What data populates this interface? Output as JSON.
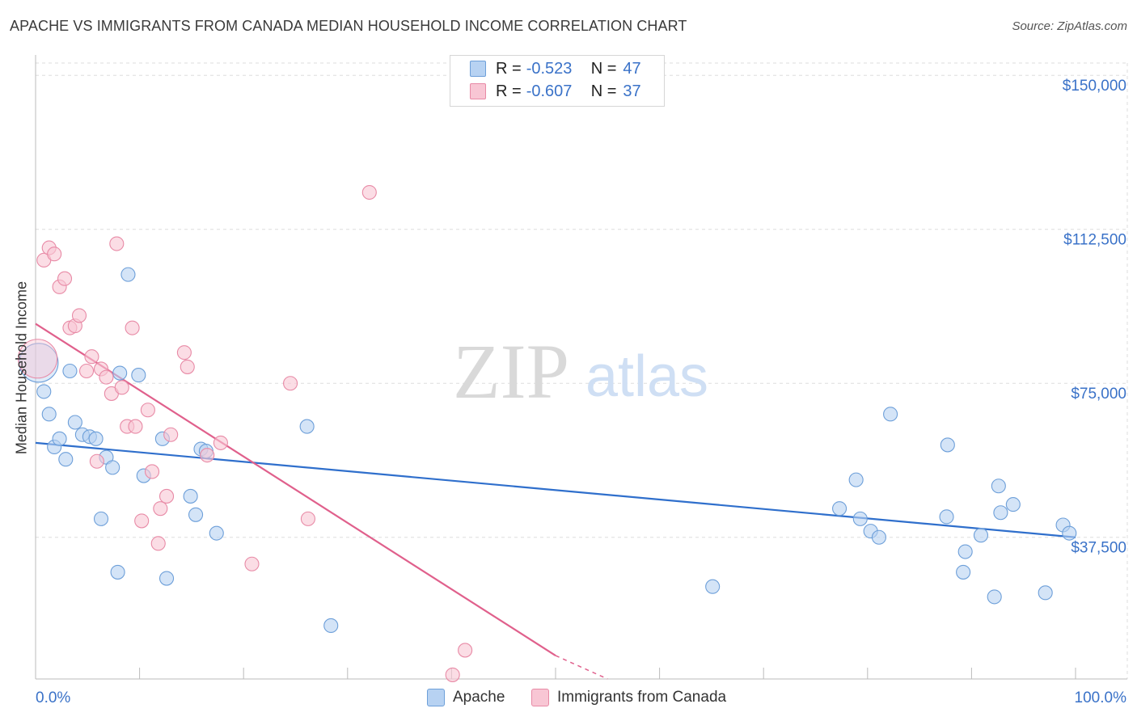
{
  "title": "APACHE VS IMMIGRANTS FROM CANADA MEDIAN HOUSEHOLD INCOME CORRELATION CHART",
  "source": "Source: ZipAtlas.com",
  "watermark": {
    "zip": "ZIP",
    "atlas": "atlas"
  },
  "legend": {
    "rows": [
      {
        "series": "Apache",
        "r_label": "R =",
        "r_value": "-0.523",
        "n_label": "N =",
        "n_value": "47",
        "color": "#a8c8f0"
      },
      {
        "series": "Immigrants from Canada",
        "r_label": "R =",
        "r_value": "-0.607",
        "n_label": "N =",
        "n_value": "37",
        "color": "#f5b8ca"
      }
    ]
  },
  "colors": {
    "apache_fill": "#b7d2f2",
    "apache_stroke": "#6d9fd9",
    "apache_line": "#2f6fcc",
    "canada_fill": "#f8c6d4",
    "canada_stroke": "#e88aa6",
    "canada_line": "#e0608c",
    "axis_value": "#3a72c8",
    "grid": "#dddddd"
  },
  "chart_data": {
    "type": "scatter",
    "title": "APACHE VS IMMIGRANTS FROM CANADA MEDIAN HOUSEHOLD INCOME CORRELATION CHART",
    "xlabel": "",
    "ylabel": "Median Household Income",
    "xlim": [
      0,
      100
    ],
    "ylim": [
      3000,
      153000
    ],
    "x_tick_labels": [
      "0.0%",
      "100.0%"
    ],
    "y_ticks": [
      37500,
      75000,
      112500,
      150000
    ],
    "y_tick_labels": [
      "$37,500",
      "$75,000",
      "$112,500",
      "$150,000"
    ],
    "grid": true,
    "series": [
      {
        "name": "Apache",
        "points": [
          {
            "x": 0.3,
            "y": 80000,
            "big": true
          },
          {
            "x": 0.8,
            "y": 73000
          },
          {
            "x": 1.3,
            "y": 67500
          },
          {
            "x": 1.8,
            "y": 59500
          },
          {
            "x": 2.3,
            "y": 61500
          },
          {
            "x": 2.9,
            "y": 56500
          },
          {
            "x": 3.3,
            "y": 78000
          },
          {
            "x": 3.8,
            "y": 65500
          },
          {
            "x": 4.5,
            "y": 62500
          },
          {
            "x": 5.2,
            "y": 62000
          },
          {
            "x": 5.8,
            "y": 61500
          },
          {
            "x": 6.8,
            "y": 57000
          },
          {
            "x": 7.4,
            "y": 54500
          },
          {
            "x": 8.1,
            "y": 77500
          },
          {
            "x": 8.9,
            "y": 101500
          },
          {
            "x": 9.9,
            "y": 77000
          },
          {
            "x": 10.4,
            "y": 52500
          },
          {
            "x": 6.3,
            "y": 42000
          },
          {
            "x": 7.9,
            "y": 29000
          },
          {
            "x": 12.6,
            "y": 27500
          },
          {
            "x": 12.2,
            "y": 61500
          },
          {
            "x": 15.9,
            "y": 59000
          },
          {
            "x": 16.4,
            "y": 58500
          },
          {
            "x": 14.9,
            "y": 47500
          },
          {
            "x": 15.4,
            "y": 43000
          },
          {
            "x": 17.4,
            "y": 38500
          },
          {
            "x": 26.1,
            "y": 64500
          },
          {
            "x": 28.4,
            "y": 16000
          },
          {
            "x": 65.1,
            "y": 25500
          },
          {
            "x": 78.9,
            "y": 51500
          },
          {
            "x": 77.3,
            "y": 44500
          },
          {
            "x": 79.3,
            "y": 42000
          },
          {
            "x": 80.3,
            "y": 39000
          },
          {
            "x": 81.1,
            "y": 37500
          },
          {
            "x": 82.2,
            "y": 67500
          },
          {
            "x": 87.7,
            "y": 60000
          },
          {
            "x": 87.6,
            "y": 42500
          },
          {
            "x": 89.4,
            "y": 34000
          },
          {
            "x": 89.2,
            "y": 29000
          },
          {
            "x": 90.9,
            "y": 38000
          },
          {
            "x": 92.6,
            "y": 50000
          },
          {
            "x": 92.8,
            "y": 43500
          },
          {
            "x": 94.0,
            "y": 45500
          },
          {
            "x": 92.2,
            "y": 23000
          },
          {
            "x": 98.8,
            "y": 40500
          },
          {
            "x": 99.4,
            "y": 38500
          },
          {
            "x": 97.1,
            "y": 24000
          }
        ]
      },
      {
        "name": "Immigrants from Canada",
        "points": [
          {
            "x": 0.2,
            "y": 81000,
            "big": true
          },
          {
            "x": 0.8,
            "y": 105000
          },
          {
            "x": 1.3,
            "y": 108000
          },
          {
            "x": 1.8,
            "y": 106500
          },
          {
            "x": 2.3,
            "y": 98500
          },
          {
            "x": 2.8,
            "y": 100500
          },
          {
            "x": 3.3,
            "y": 88500
          },
          {
            "x": 3.8,
            "y": 89000
          },
          {
            "x": 4.2,
            "y": 91500
          },
          {
            "x": 4.9,
            "y": 78000
          },
          {
            "x": 5.4,
            "y": 81500
          },
          {
            "x": 5.9,
            "y": 56000
          },
          {
            "x": 6.3,
            "y": 78500
          },
          {
            "x": 6.8,
            "y": 76500
          },
          {
            "x": 7.3,
            "y": 72500
          },
          {
            "x": 7.8,
            "y": 109000
          },
          {
            "x": 8.3,
            "y": 74000
          },
          {
            "x": 8.8,
            "y": 64500
          },
          {
            "x": 9.6,
            "y": 64500
          },
          {
            "x": 9.3,
            "y": 88500
          },
          {
            "x": 10.8,
            "y": 68500
          },
          {
            "x": 10.2,
            "y": 41500
          },
          {
            "x": 11.2,
            "y": 53500
          },
          {
            "x": 12.0,
            "y": 44500
          },
          {
            "x": 12.6,
            "y": 47500
          },
          {
            "x": 11.8,
            "y": 36000
          },
          {
            "x": 13.0,
            "y": 62500
          },
          {
            "x": 14.3,
            "y": 82500
          },
          {
            "x": 14.6,
            "y": 79000
          },
          {
            "x": 16.5,
            "y": 57500
          },
          {
            "x": 17.8,
            "y": 60500
          },
          {
            "x": 20.8,
            "y": 31000
          },
          {
            "x": 24.5,
            "y": 75000
          },
          {
            "x": 26.2,
            "y": 42000
          },
          {
            "x": 32.1,
            "y": 121500
          },
          {
            "x": 41.3,
            "y": 10000
          },
          {
            "x": 40.1,
            "y": 4000
          }
        ]
      }
    ],
    "trend_lines": [
      {
        "series": "Apache",
        "x": [
          0,
          100
        ],
        "y": [
          60500,
          37500
        ],
        "dashed_to": null
      },
      {
        "series": "Immigrants from Canada",
        "x": [
          0,
          50
        ],
        "y": [
          89500,
          8700
        ],
        "dashed_to": [
          55,
          3000
        ]
      }
    ]
  }
}
